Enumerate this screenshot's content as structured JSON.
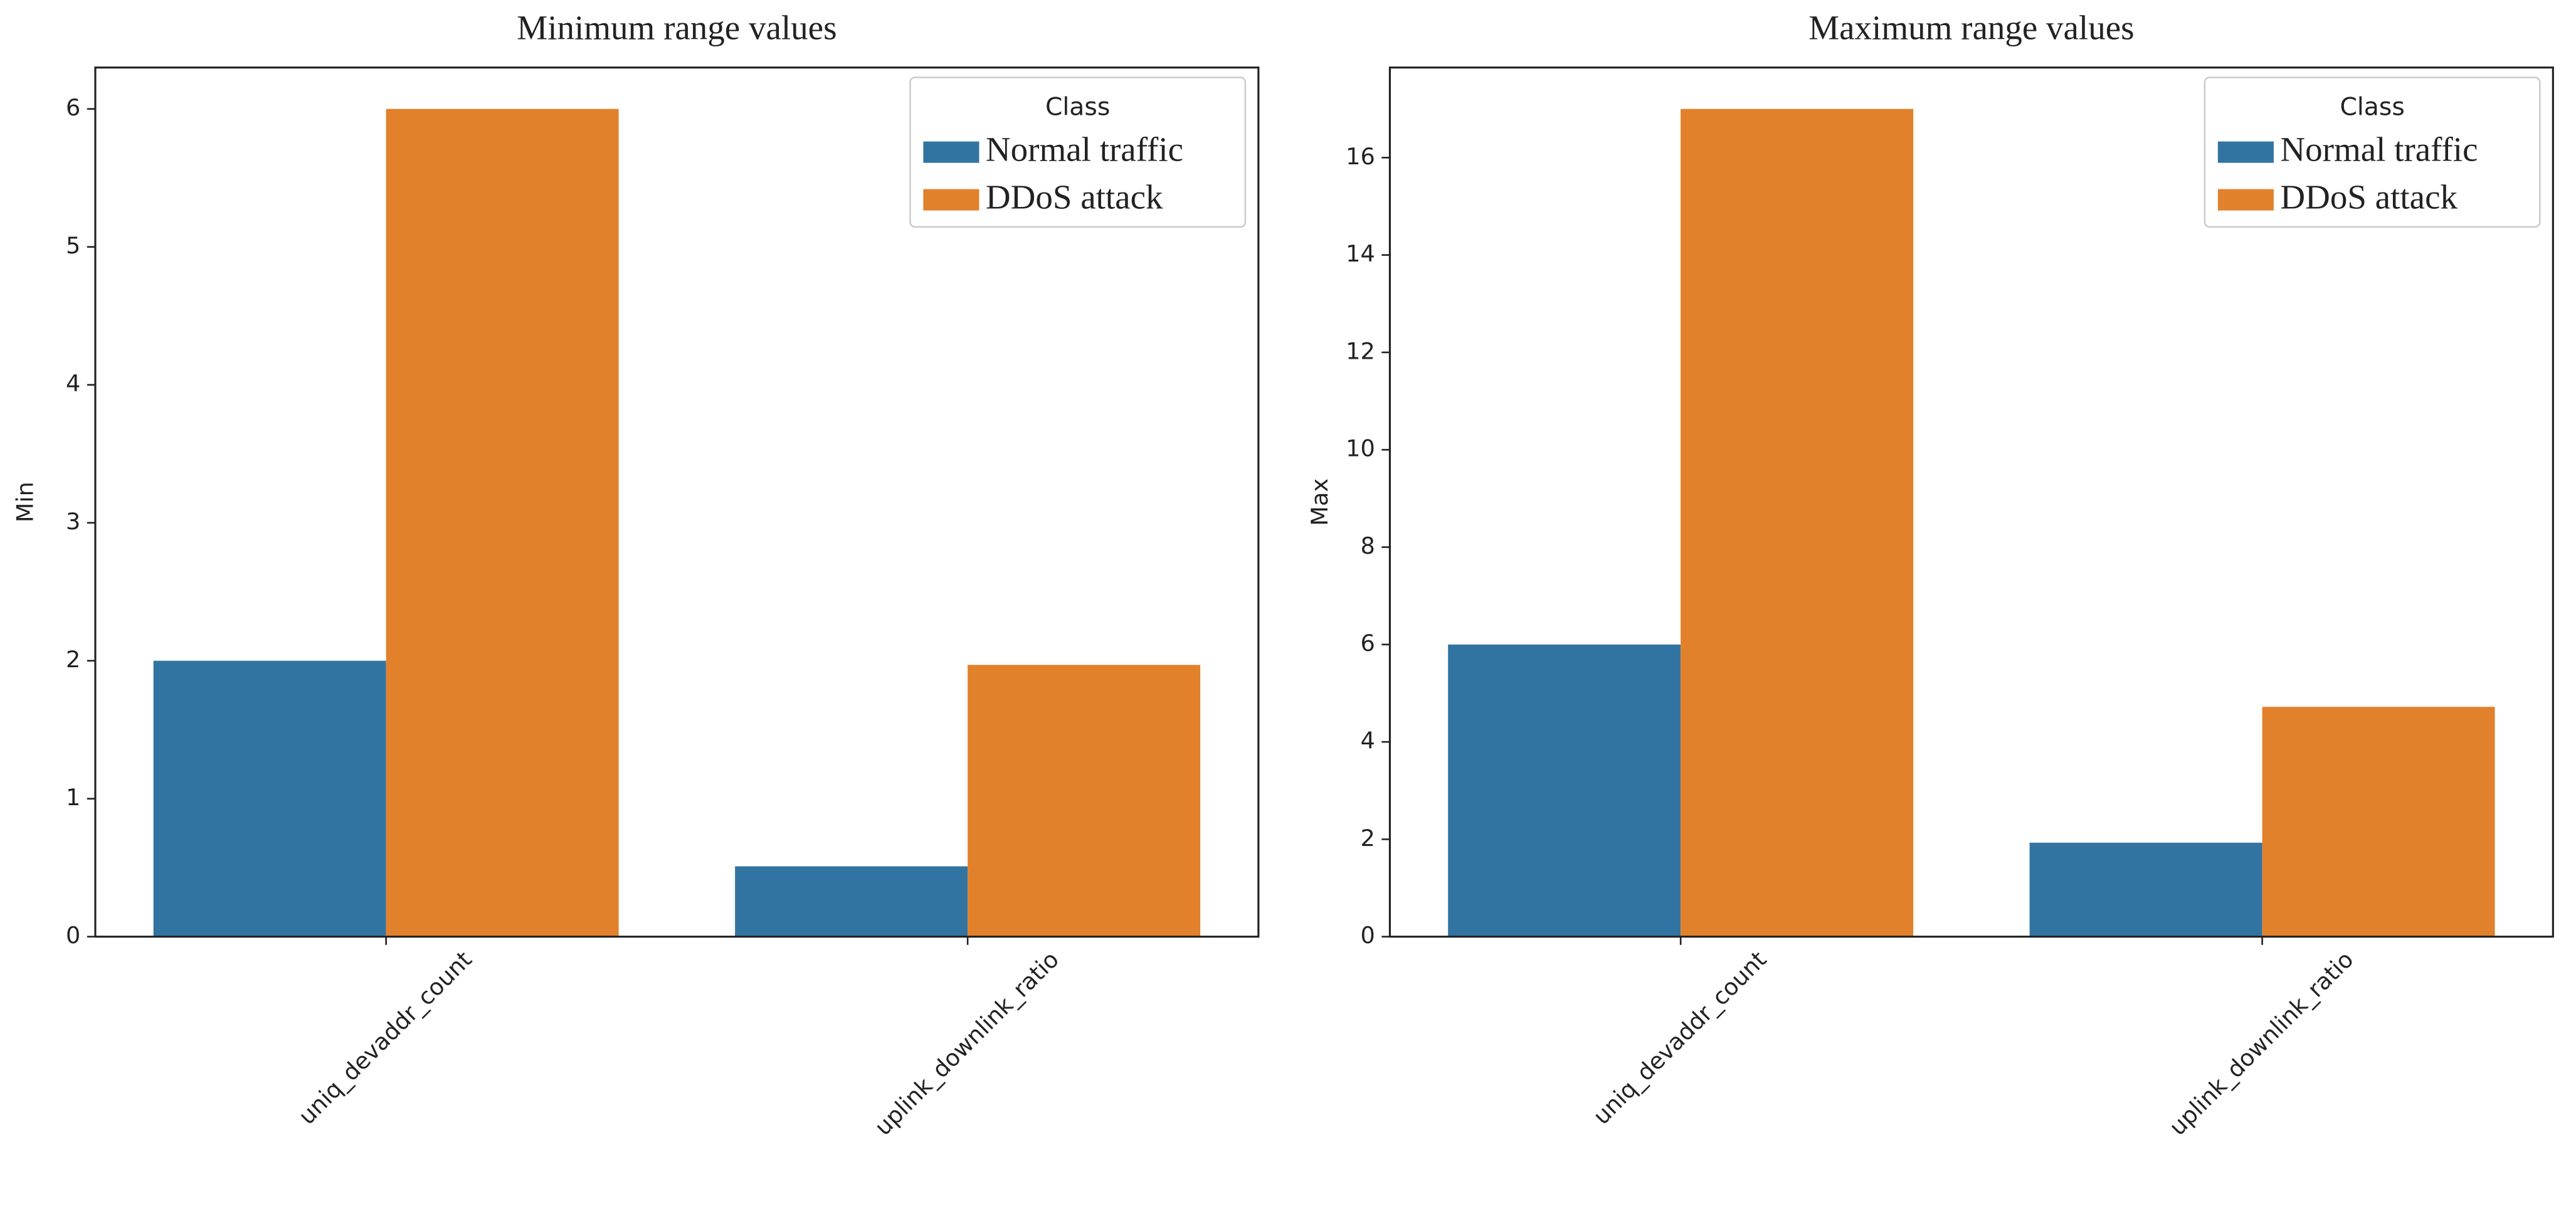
{
  "chart_data": [
    {
      "type": "bar",
      "title": "Minimum range values",
      "ylabel": "Min",
      "categories": [
        "uniq_devaddr_count",
        "uplink_downlink_ratio"
      ],
      "series": [
        {
          "name": "Normal traffic",
          "color": "#3274a1",
          "values": [
            2.0,
            0.51
          ]
        },
        {
          "name": "DDoS attack",
          "color": "#e1812c",
          "values": [
            6.0,
            1.97
          ]
        }
      ],
      "ylim": [
        0,
        6.3
      ],
      "yticks": [
        0,
        1,
        2,
        3,
        4,
        5,
        6
      ],
      "legend_title": "Class",
      "legend": "upper right"
    },
    {
      "type": "bar",
      "title": "Maximum range values",
      "ylabel": "Max",
      "categories": [
        "uniq_devaddr_count",
        "uplink_downlink_ratio"
      ],
      "series": [
        {
          "name": "Normal traffic",
          "color": "#3274a1",
          "values": [
            6.0,
            1.93
          ]
        },
        {
          "name": "DDoS attack",
          "color": "#e1812c",
          "values": [
            17.0,
            4.72
          ]
        }
      ],
      "ylim": [
        0,
        17.85
      ],
      "yticks": [
        0,
        2,
        4,
        6,
        8,
        10,
        12,
        14,
        16
      ],
      "legend_title": "Class",
      "legend": "upper right"
    }
  ]
}
